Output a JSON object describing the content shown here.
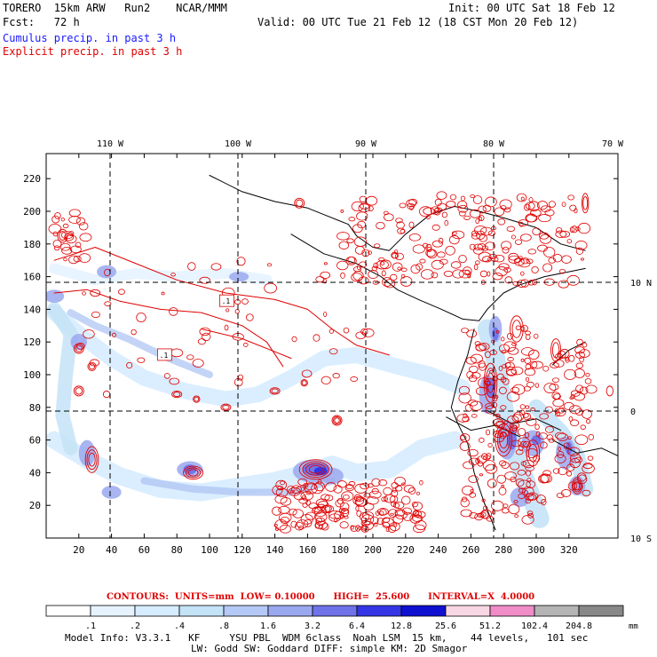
{
  "header": {
    "model": "TORERO  15km ARW   Run2    NCAR/MMM",
    "init": "Init: 00 UTC Sat 18 Feb 12",
    "fcst": "Fcst:   72 h",
    "valid": "Valid: 00 UTC Tue 21 Feb 12 (18 CST Mon 20 Feb 12)",
    "line_blue": "Cumulus precip. in past 3 h",
    "line_red": "Explicit precip. in past 3 h"
  },
  "contour_info": "CONTOURS:  UNITS=mm  LOW= 0.10000      HIGH=  25.600      INTERVAL=X  4.0000",
  "footer": {
    "line1": "Model Info: V3.3.1   KF     YSU PBL  WDM 6class  Noah LSM  15 km,    44 levels,   101 sec",
    "line2": "LW: Godd SW: Goddard DIFF: simple KM: 2D Smagor"
  },
  "colors": {
    "contour": "#e00000",
    "coast": "#000000",
    "shade": [
      "#ffffff",
      "#e6f3ff",
      "#d6ecff",
      "#c4e3f7",
      "#b4c9f5",
      "#9aa8ef",
      "#6f72e8",
      "#3535e6",
      "#1010d0",
      "#f7d7e3",
      "#f08cc8",
      "#b4b4b4",
      "#888888",
      "#d8a8f4"
    ]
  },
  "chart_data": {
    "type": "heatmap",
    "title": "Cumulus precip. in past 3 h / Explicit precip. in past 3 h",
    "xlabel": "",
    "ylabel": "",
    "x_grid_ticks": [
      "20",
      "40",
      "60",
      "80",
      "100",
      "120",
      "140",
      "160",
      "180",
      "200",
      "220",
      "240",
      "260",
      "280",
      "300",
      "320"
    ],
    "y_grid_ticks": [
      "20",
      "40",
      "60",
      "80",
      "100",
      "120",
      "140",
      "160",
      "180",
      "200",
      "220"
    ],
    "lon_labels": [
      "110 W",
      "100 W",
      "90 W",
      "80 W",
      "70 W"
    ],
    "lat_labels": [
      "10 N",
      "0",
      "10 S"
    ],
    "colorbar": {
      "unit": "mm",
      "levels": [
        ".1",
        ".2",
        ".4",
        ".8",
        "1.6",
        "3.2",
        "6.4",
        "12.8",
        "25.6",
        "51.2",
        "102.4",
        "204.8"
      ]
    },
    "contour_units": "mm",
    "contour_low": 0.1,
    "contour_high": 25.6,
    "contour_interval": 4.0,
    "grid": true
  }
}
